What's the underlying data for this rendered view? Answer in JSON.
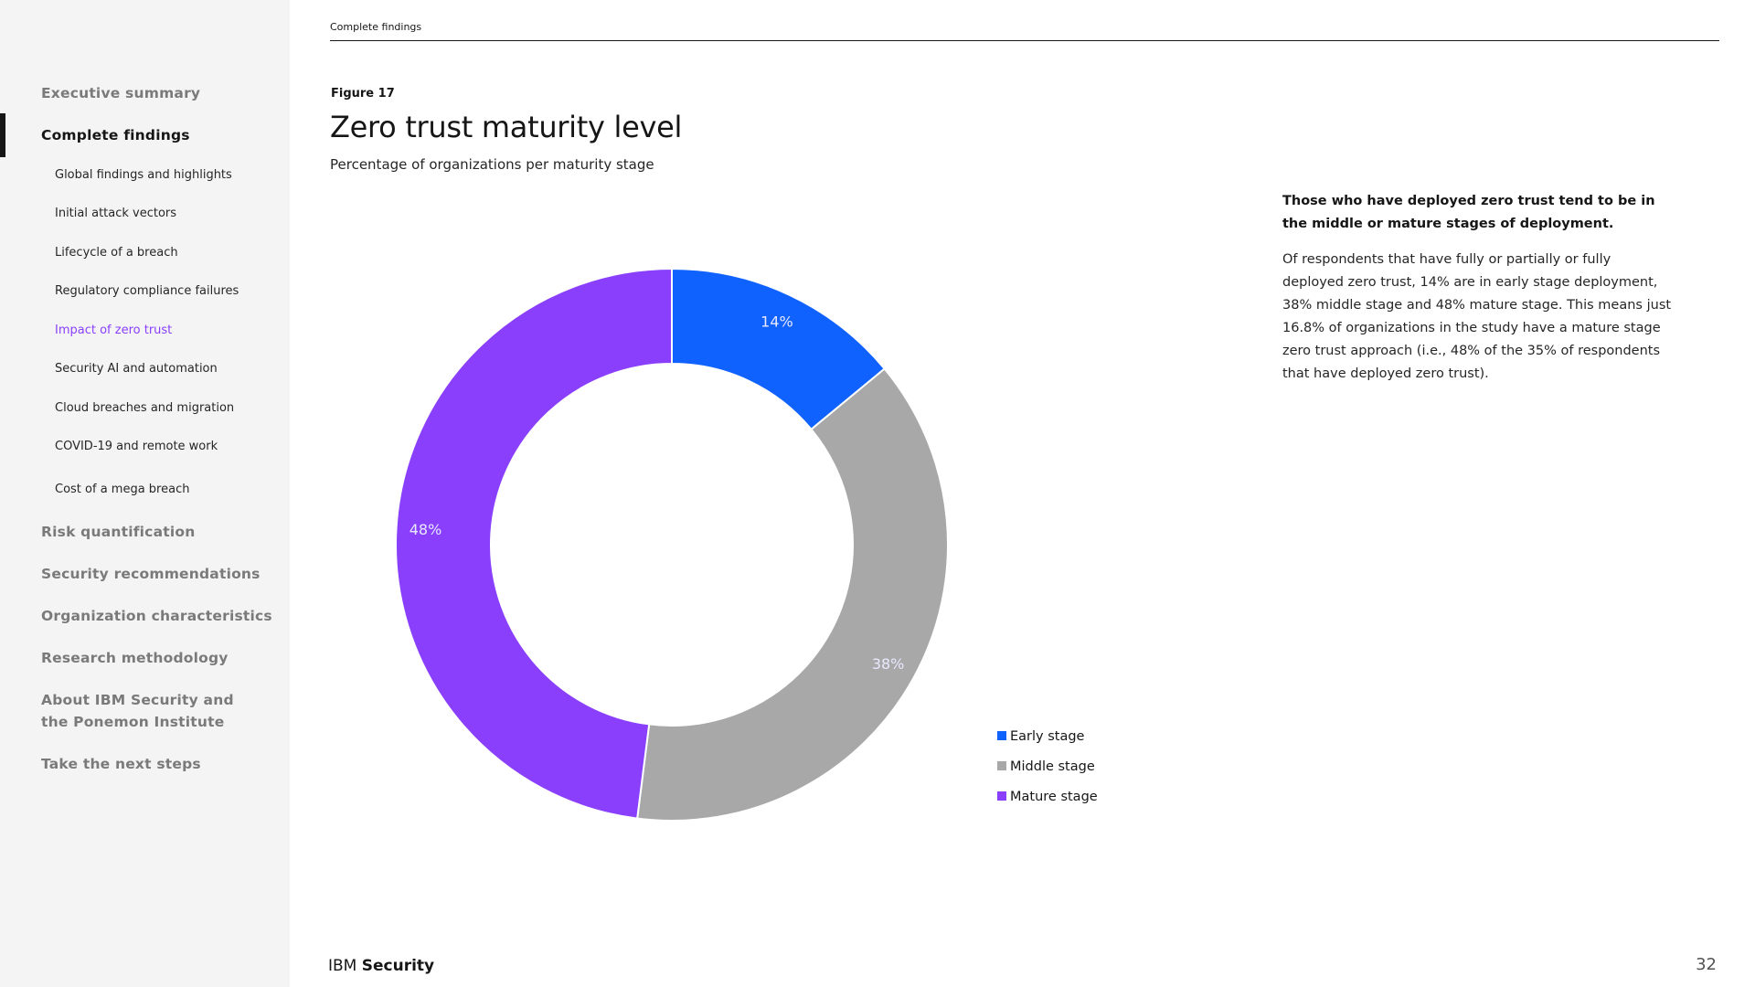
{
  "header": {
    "section_label": "Complete findings"
  },
  "sidebar": {
    "items": [
      {
        "label": "Executive summary",
        "active": false
      },
      {
        "label": "Complete findings",
        "active": true
      },
      {
        "label": "Risk quantification",
        "active": false
      },
      {
        "label": "Security recommendations",
        "active": false
      },
      {
        "label": "Organization characteristics",
        "active": false
      },
      {
        "label": "Research methodology",
        "active": false
      },
      {
        "label": "About IBM Security and the Ponemon Institute",
        "active": false
      },
      {
        "label": "Take the next steps",
        "active": false
      }
    ],
    "subitems": [
      {
        "label": "Global findings and highlights"
      },
      {
        "label": "Initial attack vectors"
      },
      {
        "label": "Lifecycle of a breach"
      },
      {
        "label": "Regulatory compliance failures"
      },
      {
        "label": "Impact of zero trust",
        "current": true
      },
      {
        "label": "Security AI and automation"
      },
      {
        "label": "Cloud breaches and migration"
      },
      {
        "label": "COVID-19 and remote work"
      },
      {
        "label": "Cost of a mega breach"
      }
    ]
  },
  "figure": {
    "label": "Figure 17",
    "title": "Zero trust maturity level",
    "subtitle": "Percentage of organizations per maturity stage"
  },
  "chart_data": {
    "type": "pie",
    "donut": true,
    "title": "Zero trust maturity level",
    "subtitle": "Percentage of organizations per maturity stage",
    "categories": [
      "Early stage",
      "Middle stage",
      "Mature stage"
    ],
    "values": [
      14,
      38,
      48
    ],
    "labels": [
      "14%",
      "38%",
      "48%"
    ],
    "colors": [
      "#0f62fe",
      "#a8a8a8",
      "#8a3ffc"
    ],
    "legend_position": "bottom-right"
  },
  "note": {
    "heading": "Those who have deployed zero trust tend to be in the middle or mature stages of deployment.",
    "body": "Of respondents that have fully or partially or fully deployed zero trust, 14% are in early stage deployment, 38% middle stage and 48% mature stage. This means just 16.8% of organizations in the study have a mature stage zero trust approach (i.e., 48% of the 35% of respondents that have deployed zero trust)."
  },
  "footer": {
    "logo_regular": "IBM",
    "logo_bold": "Security",
    "page_number": "32"
  }
}
